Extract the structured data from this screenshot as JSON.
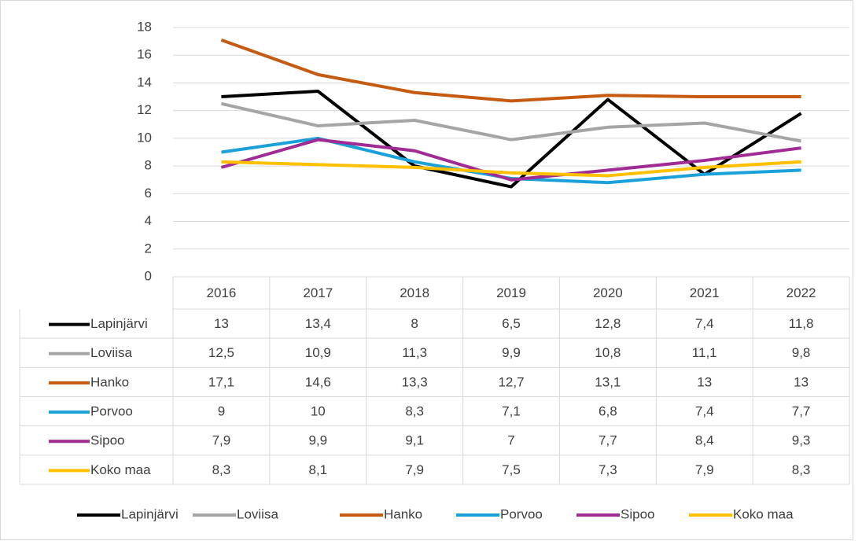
{
  "chart_data": {
    "type": "line",
    "categories": [
      "2016",
      "2017",
      "2018",
      "2019",
      "2020",
      "2021",
      "2022"
    ],
    "series": [
      {
        "name": "Lapinjärvi",
        "color": "#000000",
        "values": [
          13,
          13.4,
          8,
          6.5,
          12.8,
          7.4,
          11.8
        ],
        "value_labels": [
          "13",
          "13,4",
          "8",
          "6,5",
          "12,8",
          "7,4",
          "11,8"
        ]
      },
      {
        "name": "Loviisa",
        "color": "#a5a5a5",
        "values": [
          12.5,
          10.9,
          11.3,
          9.9,
          10.8,
          11.1,
          9.8
        ],
        "value_labels": [
          "12,5",
          "10,9",
          "11,3",
          "9,9",
          "10,8",
          "11,1",
          "9,8"
        ]
      },
      {
        "name": "Hanko",
        "color": "#c55a11",
        "values": [
          17.1,
          14.6,
          13.3,
          12.7,
          13.1,
          13,
          13
        ],
        "value_labels": [
          "17,1",
          "14,6",
          "13,3",
          "12,7",
          "13,1",
          "13",
          "13"
        ]
      },
      {
        "name": "Porvoo",
        "color": "#1ba1d9",
        "values": [
          9,
          10,
          8.3,
          7.1,
          6.8,
          7.4,
          7.7
        ],
        "value_labels": [
          "9",
          "10",
          "8,3",
          "7,1",
          "6,8",
          "7,4",
          "7,7"
        ]
      },
      {
        "name": "Sipoo",
        "color": "#a02b93",
        "values": [
          7.9,
          9.9,
          9.1,
          7,
          7.7,
          8.4,
          9.3
        ],
        "value_labels": [
          "7,9",
          "9,9",
          "9,1",
          "7",
          "7,7",
          "8,4",
          "9,3"
        ]
      },
      {
        "name": "Koko maa",
        "color": "#ffc000",
        "values": [
          8.3,
          8.1,
          7.9,
          7.5,
          7.3,
          7.9,
          8.3
        ],
        "value_labels": [
          "8,3",
          "8,1",
          "7,9",
          "7,5",
          "7,3",
          "7,9",
          "8,3"
        ]
      }
    ],
    "ylim": [
      0,
      18
    ],
    "yticks": [
      0,
      2,
      4,
      6,
      8,
      10,
      12,
      14,
      16,
      18
    ],
    "grid": true,
    "legend": "bottom",
    "data_table": true
  }
}
